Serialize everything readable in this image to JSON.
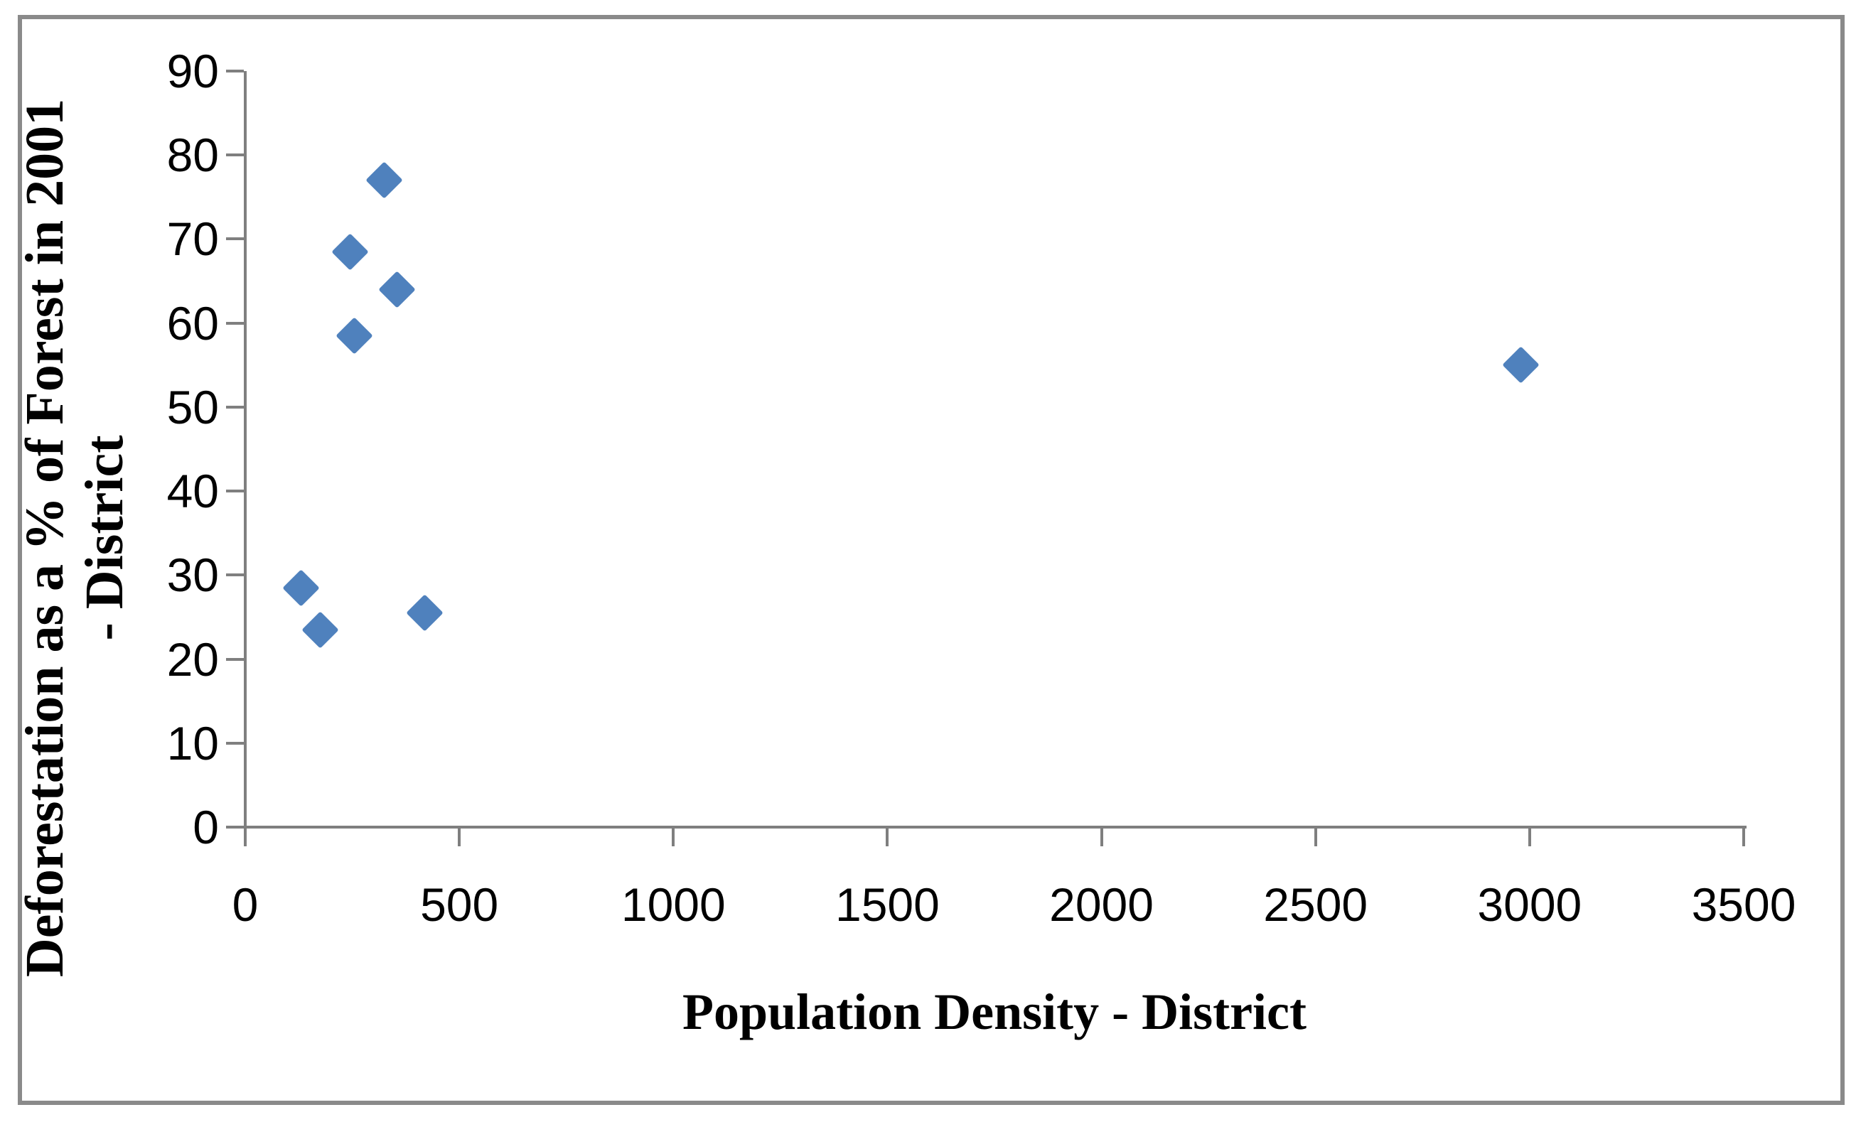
{
  "chart_data": {
    "type": "scatter",
    "xlabel": "Population Density - District",
    "ylabel": "Deforestation as a % of Forest in 2001 - District",
    "ylabel_lines": [
      "Deforestation as a % of Forest in 2001",
      "- District"
    ],
    "xlim": [
      0,
      3500
    ],
    "ylim": [
      0,
      90
    ],
    "x_ticks": [
      0,
      500,
      1000,
      1500,
      2000,
      2500,
      3000,
      3500
    ],
    "y_ticks": [
      0,
      10,
      20,
      30,
      40,
      50,
      60,
      70,
      80,
      90
    ],
    "grid": false,
    "legend": false,
    "marker_shape": "diamond",
    "series": [
      {
        "points": [
          {
            "x": 130,
            "y": 28.5
          },
          {
            "x": 175,
            "y": 23.5
          },
          {
            "x": 245,
            "y": 68.5
          },
          {
            "x": 255,
            "y": 58.5
          },
          {
            "x": 325,
            "y": 77
          },
          {
            "x": 355,
            "y": 64
          },
          {
            "x": 420,
            "y": 25.5
          },
          {
            "x": 2980,
            "y": 55
          }
        ]
      }
    ]
  },
  "colors": {
    "marker": "#4F81BD",
    "axis": "#7F7F7F",
    "frame_border": "#8A8A8A",
    "tick_label": "#000000",
    "background": "#FFFFFF"
  }
}
